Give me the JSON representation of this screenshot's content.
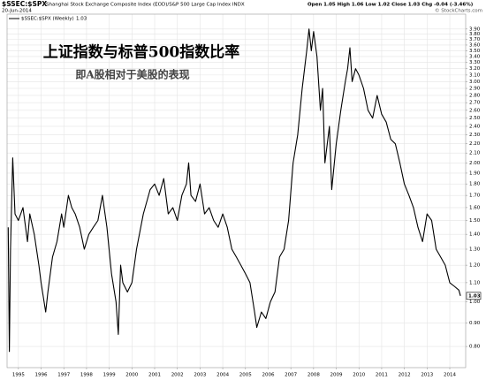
{
  "chart_data": {
    "type": "line",
    "symbol": "$SSEC:$SPX",
    "description": "Shanghai Stock Exchange Composite Index (EOD)/S&P 500 Large Cap Index  INDX",
    "date": "20-Jun-2014",
    "quote": "Open 1.05  High 1.06  Low 1.02  Close 1.03  Chg -0.04 (-3.46%)",
    "watermark": "© StockCharts.com",
    "title": "上证指数与标普500指数比率",
    "subtitle": "即A股相对于美股的表现",
    "log_scale": true,
    "grid": true,
    "x": [
      1994.55,
      1994.6,
      1994.65,
      1994.75,
      1994.85,
      1995.0,
      1995.2,
      1995.4,
      1995.5,
      1995.7,
      1995.9,
      1996.0,
      1996.2,
      1996.3,
      1996.5,
      1996.7,
      1996.9,
      1997.0,
      1997.2,
      1997.35,
      1997.5,
      1997.7,
      1997.9,
      1998.1,
      1998.3,
      1998.5,
      1998.7,
      1998.9,
      1999.1,
      1999.3,
      1999.4,
      1999.5,
      1999.6,
      1999.8,
      2000.0,
      2000.2,
      2000.5,
      2000.8,
      2001.0,
      2001.2,
      2001.4,
      2001.6,
      2001.8,
      2002.0,
      2002.2,
      2002.4,
      2002.5,
      2002.6,
      2002.8,
      2003.0,
      2003.2,
      2003.4,
      2003.6,
      2003.8,
      2004.0,
      2004.2,
      2004.4,
      2004.6,
      2004.8,
      2005.0,
      2005.2,
      2005.4,
      2005.5,
      2005.7,
      2005.9,
      2006.1,
      2006.3,
      2006.5,
      2006.7,
      2006.9,
      2007.1,
      2007.3,
      2007.5,
      2007.7,
      2007.8,
      2007.9,
      2008.0,
      2008.15,
      2008.3,
      2008.4,
      2008.5,
      2008.7,
      2008.8,
      2009.0,
      2009.2,
      2009.4,
      2009.5,
      2009.6,
      2009.7,
      2009.85,
      2010.0,
      2010.2,
      2010.4,
      2010.6,
      2010.8,
      2011.0,
      2011.2,
      2011.4,
      2011.6,
      2011.8,
      2012.0,
      2012.2,
      2012.4,
      2012.6,
      2012.8,
      2013.0,
      2013.2,
      2013.4,
      2013.6,
      2013.8,
      2014.0,
      2014.2,
      2014.4,
      2014.47
    ],
    "series": [
      {
        "name": "$SSEC:$SPX (Weekly)",
        "color": "#000000",
        "last": 1.03,
        "values": [
          1.45,
          0.78,
          1.3,
          2.05,
          1.55,
          1.5,
          1.6,
          1.35,
          1.55,
          1.4,
          1.2,
          1.1,
          0.95,
          1.05,
          1.25,
          1.35,
          1.55,
          1.45,
          1.7,
          1.6,
          1.55,
          1.45,
          1.3,
          1.4,
          1.45,
          1.5,
          1.7,
          1.45,
          1.15,
          1.0,
          0.85,
          1.2,
          1.1,
          1.05,
          1.1,
          1.3,
          1.55,
          1.75,
          1.8,
          1.7,
          1.85,
          1.55,
          1.6,
          1.5,
          1.7,
          1.8,
          2.0,
          1.7,
          1.65,
          1.8,
          1.55,
          1.6,
          1.5,
          1.45,
          1.55,
          1.45,
          1.3,
          1.25,
          1.2,
          1.15,
          1.1,
          0.95,
          0.88,
          0.95,
          0.92,
          1.0,
          1.05,
          1.25,
          1.3,
          1.5,
          2.0,
          2.3,
          2.9,
          3.5,
          3.9,
          3.5,
          3.85,
          3.4,
          2.6,
          2.9,
          2.0,
          2.4,
          1.75,
          2.2,
          2.6,
          3.0,
          3.2,
          3.55,
          3.0,
          3.2,
          3.1,
          2.9,
          2.6,
          2.5,
          2.8,
          2.55,
          2.45,
          2.25,
          2.2,
          2.0,
          1.8,
          1.7,
          1.6,
          1.45,
          1.35,
          1.55,
          1.5,
          1.3,
          1.25,
          1.2,
          1.1,
          1.08,
          1.06,
          1.03
        ]
      }
    ],
    "xlim": [
      1994.5,
      2014.7
    ],
    "xticks": [
      1995,
      1996,
      1997,
      1998,
      1999,
      2000,
      2001,
      2002,
      2003,
      2004,
      2005,
      2006,
      2007,
      2008,
      2009,
      2010,
      2011,
      2012,
      2013,
      2014
    ],
    "ylim": [
      0.72,
      4.2
    ],
    "yticks": [
      {
        "value": 0.8,
        "label": "0.80"
      },
      {
        "value": 0.9,
        "label": "0.90"
      },
      {
        "value": 1.0,
        "label": "1.00"
      },
      {
        "value": 1.1,
        "label": "1.10"
      },
      {
        "value": 1.2,
        "label": "1.20"
      },
      {
        "value": 1.3,
        "label": "1.30"
      },
      {
        "value": 1.4,
        "label": "1.40"
      },
      {
        "value": 1.5,
        "label": "1.50"
      },
      {
        "value": 1.6,
        "label": "1.60"
      },
      {
        "value": 1.7,
        "label": "1.70"
      },
      {
        "value": 1.8,
        "label": "1.80"
      },
      {
        "value": 1.9,
        "label": "1.90"
      },
      {
        "value": 2.0,
        "label": "2.00"
      },
      {
        "value": 2.1,
        "label": "2.10"
      },
      {
        "value": 2.2,
        "label": "2.20"
      },
      {
        "value": 2.3,
        "label": "2.30"
      },
      {
        "value": 2.4,
        "label": "2.40"
      },
      {
        "value": 2.5,
        "label": "2.50"
      },
      {
        "value": 2.6,
        "label": "2.60"
      },
      {
        "value": 2.7,
        "label": "2.70"
      },
      {
        "value": 2.8,
        "label": "2.80"
      },
      {
        "value": 2.9,
        "label": "2.90"
      },
      {
        "value": 3.0,
        "label": "3.00"
      },
      {
        "value": 3.1,
        "label": "3.10"
      },
      {
        "value": 3.2,
        "label": "3.20"
      },
      {
        "value": 3.3,
        "label": "3.30"
      },
      {
        "value": 3.4,
        "label": "3.40"
      },
      {
        "value": 3.5,
        "label": "3.50"
      },
      {
        "value": 3.6,
        "label": "3.60"
      },
      {
        "value": 3.7,
        "label": "3.70"
      },
      {
        "value": 3.8,
        "label": "3.80"
      },
      {
        "value": 3.9,
        "label": "3.90"
      }
    ]
  }
}
